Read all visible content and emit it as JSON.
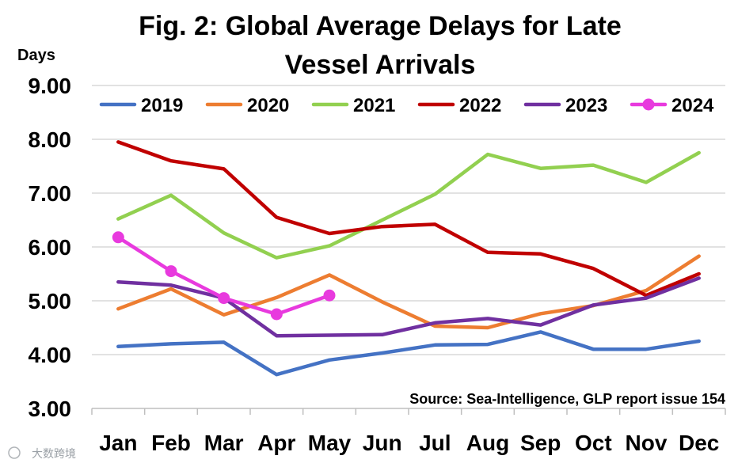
{
  "chart_data": {
    "type": "line",
    "title_lines": [
      "Fig. 2: Global Average Delays for Late",
      "Vessel Arrivals"
    ],
    "ylabel": "Days",
    "xlabel": "",
    "ylim": [
      3,
      9
    ],
    "yticks": [
      "3.00",
      "4.00",
      "5.00",
      "6.00",
      "7.00",
      "8.00",
      "9.00"
    ],
    "categories": [
      "Jan",
      "Feb",
      "Mar",
      "Apr",
      "May",
      "Jun",
      "Jul",
      "Aug",
      "Sep",
      "Oct",
      "Nov",
      "Dec"
    ],
    "grid": true,
    "legend_position": "top",
    "series": [
      {
        "name": "2019",
        "color": "#4472C4",
        "markers": false,
        "values": [
          4.15,
          4.2,
          4.23,
          3.63,
          3.9,
          4.03,
          4.18,
          4.19,
          4.42,
          4.1,
          4.1,
          4.25
        ]
      },
      {
        "name": "2020",
        "color": "#ED7D31",
        "markers": false,
        "values": [
          4.85,
          5.22,
          4.74,
          5.06,
          5.48,
          4.98,
          4.53,
          4.5,
          4.76,
          4.91,
          5.19,
          5.83
        ]
      },
      {
        "name": "2021",
        "color": "#92D050",
        "markers": false,
        "values": [
          6.52,
          6.96,
          6.26,
          5.8,
          6.02,
          6.5,
          6.98,
          7.72,
          7.46,
          7.52,
          7.2,
          7.75
        ]
      },
      {
        "name": "2022",
        "color": "#C00000",
        "markers": false,
        "values": [
          7.95,
          7.6,
          7.45,
          6.55,
          6.25,
          6.38,
          6.42,
          5.9,
          5.87,
          5.6,
          5.1,
          5.5
        ]
      },
      {
        "name": "2023",
        "color": "#7030A0",
        "markers": false,
        "values": [
          5.35,
          5.29,
          5.05,
          4.35,
          4.36,
          4.37,
          4.59,
          4.67,
          4.55,
          4.92,
          5.05,
          5.42
        ]
      },
      {
        "name": "2024",
        "color": "#E83ADE",
        "markers": true,
        "values": [
          6.18,
          5.55,
          5.05,
          4.75,
          5.1,
          null,
          null,
          null,
          null,
          null,
          null,
          null
        ]
      }
    ],
    "annotation": "Source: Sea-Intelligence, GLP report issue 154"
  },
  "watermark": "大数跨境"
}
